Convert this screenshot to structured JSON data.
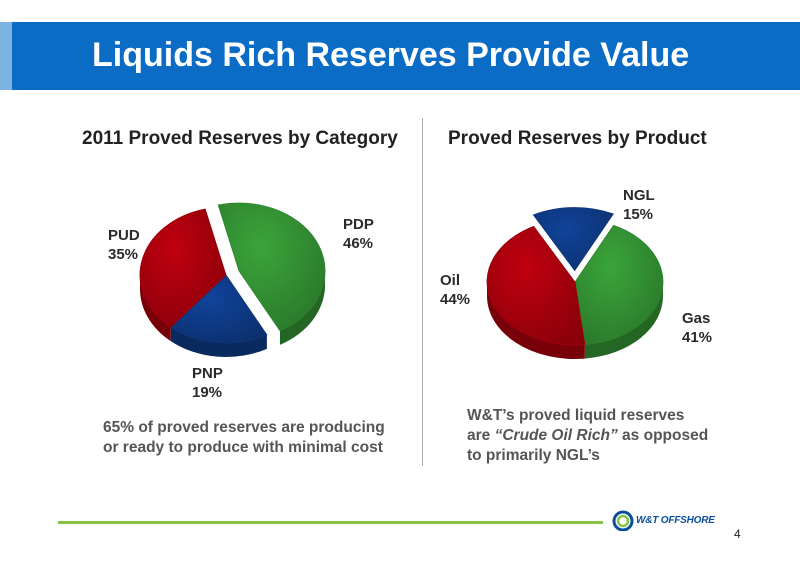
{
  "slide": {
    "title": "Liquids Rich Reserves Provide Value",
    "page_number": "4",
    "logo_text": "W&T OFFSHORE"
  },
  "colors": {
    "title_bar": "#0a6cc4",
    "green": "#3aa53a",
    "red": "#c0000f",
    "blue": "#10439a",
    "footer_line": "#86c244"
  },
  "chart_data": [
    {
      "type": "pie",
      "title": "2011 Proved Reserves by Category",
      "slices": [
        {
          "name": "PDP",
          "value": 46,
          "label": "PDP",
          "pct": "46%",
          "color": "#3aa53a",
          "exploded": true
        },
        {
          "name": "PNP",
          "value": 19,
          "label": "PNP",
          "pct": "19%",
          "color": "#10439a",
          "exploded": false
        },
        {
          "name": "PUD",
          "value": 35,
          "label": "PUD",
          "pct": "35%",
          "color": "#c0000f",
          "exploded": false
        }
      ],
      "caption_lines": [
        "65% of proved reserves are producing",
        "or ready to produce with minimal cost"
      ]
    },
    {
      "type": "pie",
      "title": "Proved Reserves by Product",
      "slices": [
        {
          "name": "NGL",
          "value": 15,
          "label": "NGL",
          "pct": "15%",
          "color": "#10439a",
          "exploded": true
        },
        {
          "name": "Gas",
          "value": 41,
          "label": "Gas",
          "pct": "41%",
          "color": "#3aa53a",
          "exploded": false
        },
        {
          "name": "Oil",
          "value": 44,
          "label": "Oil",
          "pct": "44%",
          "color": "#c0000f",
          "exploded": false
        }
      ],
      "caption_pre": "W&T’s proved liquid reserves",
      "caption_mid_pre": "are ",
      "caption_emph": "“Crude Oil Rich”",
      "caption_mid_post": " as opposed",
      "caption_post": "to primarily NGL’s"
    }
  ]
}
